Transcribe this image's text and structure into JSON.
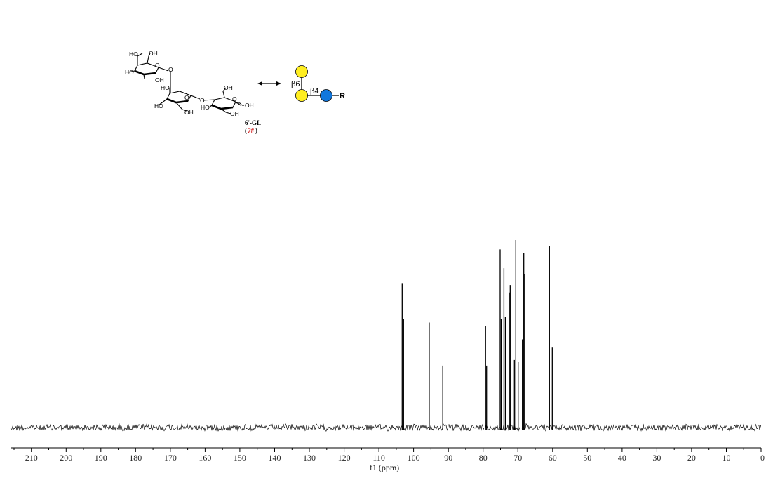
{
  "chart_data": {
    "type": "line",
    "xlabel": "f1 (ppm)",
    "xlim": [
      216,
      0
    ],
    "reversed_x_axis": true,
    "ticks": [
      210,
      200,
      190,
      180,
      170,
      160,
      150,
      140,
      130,
      120,
      110,
      100,
      90,
      80,
      70,
      60,
      50,
      40,
      30,
      20,
      10,
      0
    ],
    "tick_labels": [
      "210",
      "200",
      "190",
      "180",
      "170",
      "160",
      "150",
      "140",
      "130",
      "120",
      "110",
      "100",
      "90",
      "80",
      "70",
      "60",
      "50",
      "40",
      "30",
      "20",
      "10",
      "0"
    ],
    "peaks": [
      {
        "ppm": 103.3,
        "intensity": 0.77
      },
      {
        "ppm": 102.9,
        "intensity": 0.58
      },
      {
        "ppm": 95.5,
        "intensity": 0.56
      },
      {
        "ppm": 91.6,
        "intensity": 0.33
      },
      {
        "ppm": 79.3,
        "intensity": 0.54
      },
      {
        "ppm": 79.0,
        "intensity": 0.33
      },
      {
        "ppm": 75.1,
        "intensity": 0.95
      },
      {
        "ppm": 74.8,
        "intensity": 0.58
      },
      {
        "ppm": 74.0,
        "intensity": 0.85
      },
      {
        "ppm": 73.6,
        "intensity": 0.59
      },
      {
        "ppm": 72.5,
        "intensity": 0.72
      },
      {
        "ppm": 72.2,
        "intensity": 0.76
      },
      {
        "ppm": 71.0,
        "intensity": 0.36
      },
      {
        "ppm": 70.6,
        "intensity": 1.0
      },
      {
        "ppm": 69.9,
        "intensity": 0.35
      },
      {
        "ppm": 68.7,
        "intensity": 0.47
      },
      {
        "ppm": 68.3,
        "intensity": 0.93
      },
      {
        "ppm": 68.0,
        "intensity": 0.82
      },
      {
        "ppm": 60.9,
        "intensity": 0.97
      },
      {
        "ppm": 60.1,
        "intensity": 0.43
      }
    ],
    "noise": true,
    "line_color": "#000000"
  },
  "structure": {
    "compound_name": "6'-GL",
    "compound_number": "7#",
    "compound_number_color": "#cc0000",
    "hydroxyl_label": "HO",
    "hydroxyl_label_right": "OH",
    "ring_oxygen": "O",
    "anomeric_oh": "OH"
  },
  "glycan": {
    "linkage_top": "β6",
    "linkage_right": "β4",
    "reducing_end": "R",
    "galactose_color": "#ffee22",
    "glucose_color": "#1177dd",
    "arrow_symbol": "double-headed-arrow"
  }
}
